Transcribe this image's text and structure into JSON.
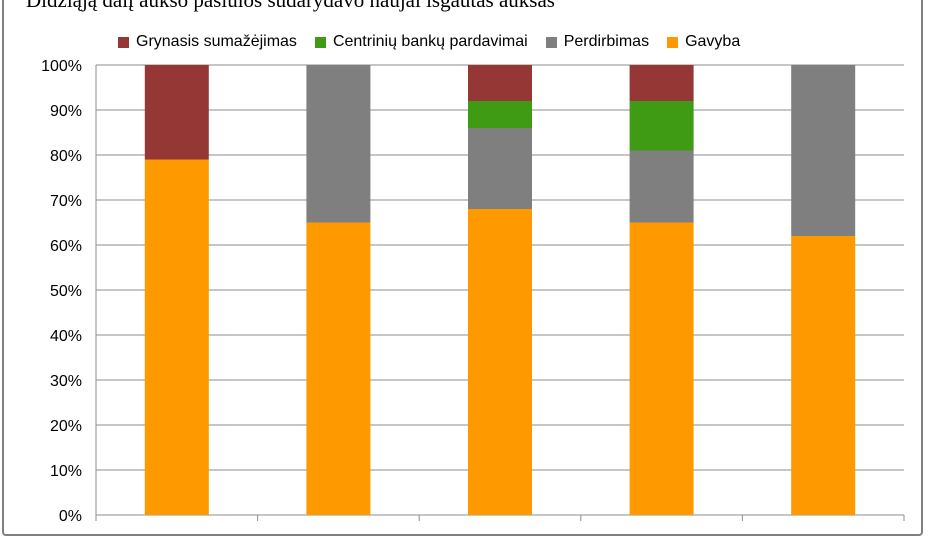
{
  "chart_data": {
    "type": "bar",
    "stacked": true,
    "title": "Didžiąją dalį aukso pasiūlos sudarydavo naujai išgautas auksas",
    "categories": [
      "",
      "",
      "",
      "",
      ""
    ],
    "series": [
      {
        "name": "Gavyba",
        "color": "#ff9900",
        "values": [
          79,
          65,
          68,
          65,
          62
        ]
      },
      {
        "name": "Perdirbimas",
        "color": "#7f7f7f",
        "values": [
          0,
          35,
          18,
          16,
          38
        ]
      },
      {
        "name": "Centrinių bankų pardavimai",
        "color": "#3f9a14",
        "values": [
          0,
          0,
          6,
          11,
          0
        ]
      },
      {
        "name": "Grynasis sumažėjimas",
        "color": "#953735",
        "values": [
          21,
          0,
          8,
          8,
          0
        ]
      }
    ],
    "legend_order": [
      "Grynasis sumažėjimas",
      "Centrinių bankų pardavimai",
      "Perdirbimas",
      "Gavyba"
    ],
    "legend_position": "top",
    "ylim": [
      0,
      100
    ],
    "yticks": [
      "0%",
      "10%",
      "20%",
      "30%",
      "40%",
      "50%",
      "60%",
      "70%",
      "80%",
      "90%",
      "100%"
    ],
    "grid": true
  }
}
